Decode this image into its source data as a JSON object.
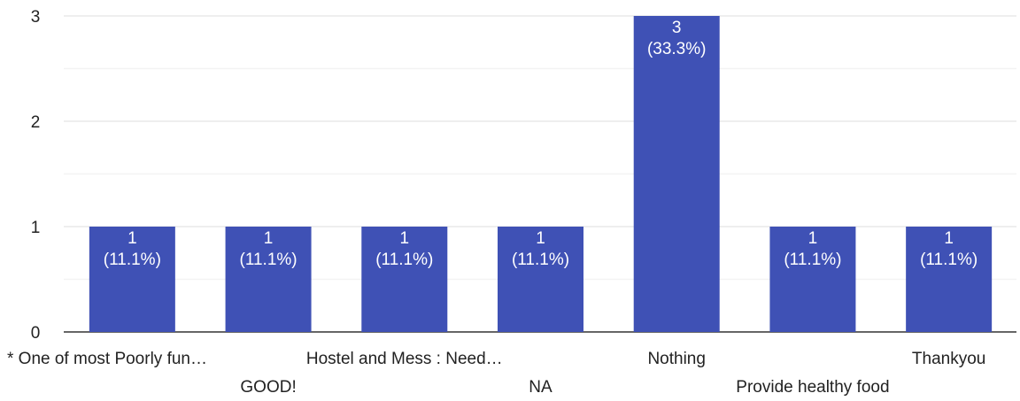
{
  "chart_data": {
    "type": "bar",
    "categories": [
      "* One of most Poorly fun…",
      "GOOD!",
      "Hostel and Mess : Need…",
      "NA",
      "Nothing",
      "Provide healthy food",
      "Thankyou"
    ],
    "values": [
      1,
      1,
      1,
      1,
      3,
      1,
      1
    ],
    "data_labels": [
      [
        "1",
        "(11.1%)"
      ],
      [
        "1",
        "(11.1%)"
      ],
      [
        "1",
        "(11.1%)"
      ],
      [
        "1",
        "(11.1%)"
      ],
      [
        "3",
        "(33.3%)"
      ],
      [
        "1",
        "(11.1%)"
      ],
      [
        "1",
        "(11.1%)"
      ]
    ],
    "ylim": [
      0,
      3
    ],
    "yticks": [
      "0",
      "1",
      "2",
      "3"
    ],
    "grid": true,
    "bar_color": "#3f51b5",
    "grid_color": "#e9e9e9"
  }
}
